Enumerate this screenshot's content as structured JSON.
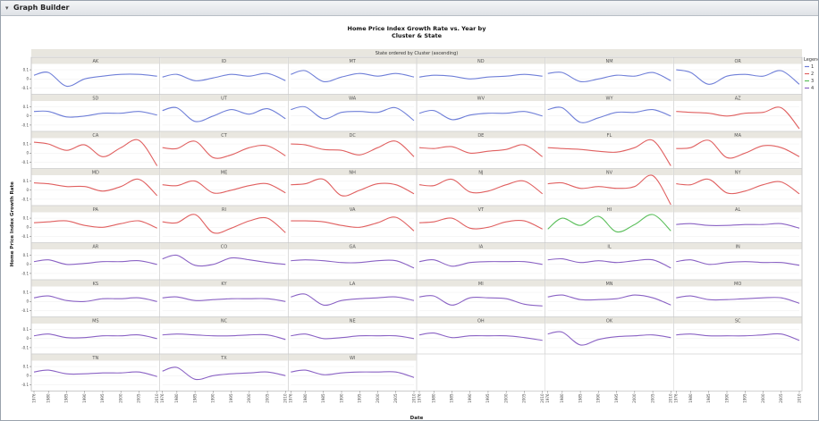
{
  "window": {
    "title": "Graph Builder"
  },
  "chart_data": {
    "type": "line",
    "title": "Home Price Index Growth Rate vs. Year by",
    "subtitle": "Cluster & State",
    "group_header": "State ordered by Cluster (ascending)",
    "ylabel": "Home Price Index Growth Rate",
    "xlabel": "Date",
    "grid": true,
    "legend": {
      "title": "Legend",
      "placement": "right",
      "entries": [
        "1",
        "2",
        "3",
        "4"
      ]
    },
    "cluster_colors": {
      "1": "#6f7fd8",
      "2": "#e06060",
      "3": "#5cbf5c",
      "4": "#8a62c4"
    },
    "y_ticks": [
      "0.1",
      "0",
      "-0.1"
    ],
    "ylim": [
      -0.15,
      0.15
    ],
    "x_ticks": [
      "1976",
      "1980",
      "1985",
      "1990",
      "1995",
      "2000",
      "2005",
      "2010"
    ],
    "x_years": [
      1976,
      1980,
      1985,
      1990,
      1995,
      2000,
      2005,
      2010
    ],
    "panels": [
      {
        "state": "AK",
        "cluster": 1,
        "values": [
          0.04,
          0.07,
          -0.08,
          0.0,
          0.03,
          0.05,
          0.05,
          0.03
        ]
      },
      {
        "state": "ID",
        "cluster": 1,
        "values": [
          0.02,
          0.05,
          -0.02,
          0.01,
          0.05,
          0.03,
          0.06,
          -0.02
        ]
      },
      {
        "state": "MT",
        "cluster": 1,
        "values": [
          0.05,
          0.09,
          -0.03,
          0.02,
          0.06,
          0.03,
          0.06,
          0.02
        ]
      },
      {
        "state": "ND",
        "cluster": 1,
        "values": [
          0.02,
          0.04,
          0.03,
          0.0,
          0.02,
          0.03,
          0.05,
          0.03
        ]
      },
      {
        "state": "NM",
        "cluster": 1,
        "values": [
          0.06,
          0.07,
          -0.03,
          0.0,
          0.04,
          0.03,
          0.07,
          -0.02
        ]
      },
      {
        "state": "OR",
        "cluster": 1,
        "values": [
          0.1,
          0.07,
          -0.06,
          0.03,
          0.05,
          0.03,
          0.09,
          -0.06
        ]
      },
      {
        "state": "SD",
        "cluster": 1,
        "values": [
          0.05,
          0.05,
          -0.01,
          0.0,
          0.03,
          0.03,
          0.05,
          0.01
        ]
      },
      {
        "state": "UT",
        "cluster": 1,
        "values": [
          0.06,
          0.09,
          -0.06,
          0.0,
          0.07,
          0.02,
          0.08,
          -0.03
        ]
      },
      {
        "state": "WA",
        "cluster": 1,
        "values": [
          0.07,
          0.1,
          -0.03,
          0.04,
          0.05,
          0.04,
          0.09,
          -0.05
        ]
      },
      {
        "state": "WV",
        "cluster": 1,
        "values": [
          0.03,
          0.06,
          -0.04,
          0.01,
          0.03,
          0.03,
          0.05,
          0.0
        ]
      },
      {
        "state": "WY",
        "cluster": 1,
        "values": [
          0.07,
          0.09,
          -0.07,
          -0.02,
          0.04,
          0.04,
          0.07,
          0.0
        ]
      },
      {
        "state": "AZ",
        "cluster": 2,
        "values": [
          0.05,
          0.04,
          0.03,
          0.0,
          0.03,
          0.04,
          0.09,
          -0.14
        ]
      },
      {
        "state": "CA",
        "cluster": 2,
        "values": [
          0.12,
          0.1,
          0.03,
          0.09,
          -0.04,
          0.06,
          0.14,
          -0.14
        ]
      },
      {
        "state": "CT",
        "cluster": 2,
        "values": [
          0.06,
          0.05,
          0.13,
          -0.05,
          -0.02,
          0.06,
          0.08,
          -0.03
        ]
      },
      {
        "state": "DC",
        "cluster": 2,
        "values": [
          0.1,
          0.09,
          0.04,
          0.03,
          -0.02,
          0.06,
          0.13,
          -0.04
        ]
      },
      {
        "state": "DE",
        "cluster": 2,
        "values": [
          0.06,
          0.05,
          0.07,
          0.0,
          0.02,
          0.04,
          0.09,
          -0.04
        ]
      },
      {
        "state": "FL",
        "cluster": 2,
        "values": [
          0.06,
          0.05,
          0.04,
          0.02,
          0.01,
          0.06,
          0.14,
          -0.14
        ]
      },
      {
        "state": "MA",
        "cluster": 2,
        "values": [
          0.05,
          0.06,
          0.14,
          -0.05,
          0.0,
          0.08,
          0.06,
          -0.04
        ]
      },
      {
        "state": "MD",
        "cluster": 2,
        "values": [
          0.08,
          0.07,
          0.04,
          0.04,
          -0.01,
          0.04,
          0.12,
          -0.06
        ]
      },
      {
        "state": "ME",
        "cluster": 2,
        "values": [
          0.06,
          0.05,
          0.1,
          -0.03,
          0.0,
          0.05,
          0.07,
          -0.03
        ]
      },
      {
        "state": "NH",
        "cluster": 2,
        "values": [
          0.06,
          0.07,
          0.12,
          -0.06,
          0.0,
          0.07,
          0.06,
          -0.04
        ]
      },
      {
        "state": "NJ",
        "cluster": 2,
        "values": [
          0.06,
          0.05,
          0.12,
          -0.02,
          -0.01,
          0.06,
          0.1,
          -0.04
        ]
      },
      {
        "state": "NV",
        "cluster": 2,
        "values": [
          0.07,
          0.08,
          0.02,
          0.04,
          0.02,
          0.04,
          0.16,
          -0.16
        ]
      },
      {
        "state": "NY",
        "cluster": 2,
        "values": [
          0.07,
          0.06,
          0.12,
          -0.03,
          -0.01,
          0.06,
          0.09,
          -0.04
        ]
      },
      {
        "state": "PA",
        "cluster": 2,
        "values": [
          0.05,
          0.06,
          0.07,
          0.02,
          0.0,
          0.04,
          0.07,
          -0.01
        ]
      },
      {
        "state": "RI",
        "cluster": 2,
        "values": [
          0.06,
          0.05,
          0.14,
          -0.06,
          -0.01,
          0.07,
          0.1,
          -0.06
        ]
      },
      {
        "state": "VA",
        "cluster": 2,
        "values": [
          0.07,
          0.07,
          0.06,
          0.02,
          0.0,
          0.05,
          0.11,
          -0.04
        ]
      },
      {
        "state": "VT",
        "cluster": 2,
        "values": [
          0.05,
          0.06,
          0.1,
          -0.01,
          0.0,
          0.06,
          0.07,
          -0.02
        ]
      },
      {
        "state": "HI",
        "cluster": 3,
        "values": [
          -0.02,
          0.1,
          0.02,
          0.12,
          -0.05,
          0.03,
          0.14,
          -0.04
        ]
      },
      {
        "state": "AL",
        "cluster": 4,
        "values": [
          0.03,
          0.04,
          0.02,
          0.02,
          0.03,
          0.03,
          0.04,
          -0.01
        ]
      },
      {
        "state": "AR",
        "cluster": 4,
        "values": [
          0.03,
          0.05,
          0.0,
          0.01,
          0.03,
          0.03,
          0.04,
          0.0
        ]
      },
      {
        "state": "CO",
        "cluster": 4,
        "values": [
          0.06,
          0.1,
          -0.01,
          0.0,
          0.07,
          0.05,
          0.02,
          0.0
        ]
      },
      {
        "state": "GA",
        "cluster": 4,
        "values": [
          0.04,
          0.05,
          0.04,
          0.02,
          0.02,
          0.04,
          0.04,
          -0.04
        ]
      },
      {
        "state": "IA",
        "cluster": 4,
        "values": [
          0.03,
          0.05,
          -0.02,
          0.02,
          0.03,
          0.03,
          0.03,
          0.0
        ]
      },
      {
        "state": "IL",
        "cluster": 4,
        "values": [
          0.05,
          0.06,
          0.02,
          0.04,
          0.02,
          0.04,
          0.05,
          -0.04
        ]
      },
      {
        "state": "IN",
        "cluster": 4,
        "values": [
          0.03,
          0.05,
          0.0,
          0.02,
          0.03,
          0.02,
          0.02,
          -0.01
        ]
      },
      {
        "state": "KS",
        "cluster": 4,
        "values": [
          0.04,
          0.06,
          0.01,
          0.0,
          0.03,
          0.03,
          0.04,
          0.0
        ]
      },
      {
        "state": "KY",
        "cluster": 4,
        "values": [
          0.04,
          0.05,
          0.01,
          0.02,
          0.03,
          0.03,
          0.03,
          0.0
        ]
      },
      {
        "state": "LA",
        "cluster": 4,
        "values": [
          0.05,
          0.08,
          -0.04,
          0.01,
          0.03,
          0.04,
          0.05,
          0.01
        ]
      },
      {
        "state": "MI",
        "cluster": 4,
        "values": [
          0.05,
          0.06,
          -0.04,
          0.04,
          0.04,
          0.03,
          -0.03,
          -0.05
        ]
      },
      {
        "state": "MN",
        "cluster": 4,
        "values": [
          0.05,
          0.07,
          0.02,
          0.02,
          0.03,
          0.07,
          0.04,
          -0.04
        ]
      },
      {
        "state": "MO",
        "cluster": 4,
        "values": [
          0.04,
          0.06,
          0.02,
          0.02,
          0.03,
          0.04,
          0.04,
          -0.02
        ]
      },
      {
        "state": "MS",
        "cluster": 4,
        "values": [
          0.03,
          0.05,
          0.01,
          0.01,
          0.03,
          0.03,
          0.04,
          0.0
        ]
      },
      {
        "state": "NC",
        "cluster": 4,
        "values": [
          0.04,
          0.05,
          0.04,
          0.03,
          0.03,
          0.04,
          0.04,
          -0.01
        ]
      },
      {
        "state": "NE",
        "cluster": 4,
        "values": [
          0.03,
          0.05,
          0.0,
          0.01,
          0.03,
          0.03,
          0.03,
          0.0
        ]
      },
      {
        "state": "OH",
        "cluster": 4,
        "values": [
          0.04,
          0.06,
          0.01,
          0.03,
          0.03,
          0.03,
          0.01,
          -0.02
        ]
      },
      {
        "state": "OK",
        "cluster": 4,
        "values": [
          0.05,
          0.07,
          -0.07,
          -0.01,
          0.02,
          0.03,
          0.04,
          0.01
        ]
      },
      {
        "state": "SC",
        "cluster": 4,
        "values": [
          0.04,
          0.05,
          0.03,
          0.03,
          0.03,
          0.04,
          0.05,
          -0.02
        ]
      },
      {
        "state": "TN",
        "cluster": 4,
        "values": [
          0.04,
          0.06,
          0.02,
          0.02,
          0.03,
          0.03,
          0.04,
          -0.01
        ]
      },
      {
        "state": "TX",
        "cluster": 4,
        "values": [
          0.05,
          0.09,
          -0.04,
          0.0,
          0.02,
          0.03,
          0.04,
          0.0
        ]
      },
      {
        "state": "WI",
        "cluster": 4,
        "values": [
          0.04,
          0.06,
          0.01,
          0.03,
          0.04,
          0.04,
          0.04,
          -0.02
        ]
      }
    ]
  }
}
